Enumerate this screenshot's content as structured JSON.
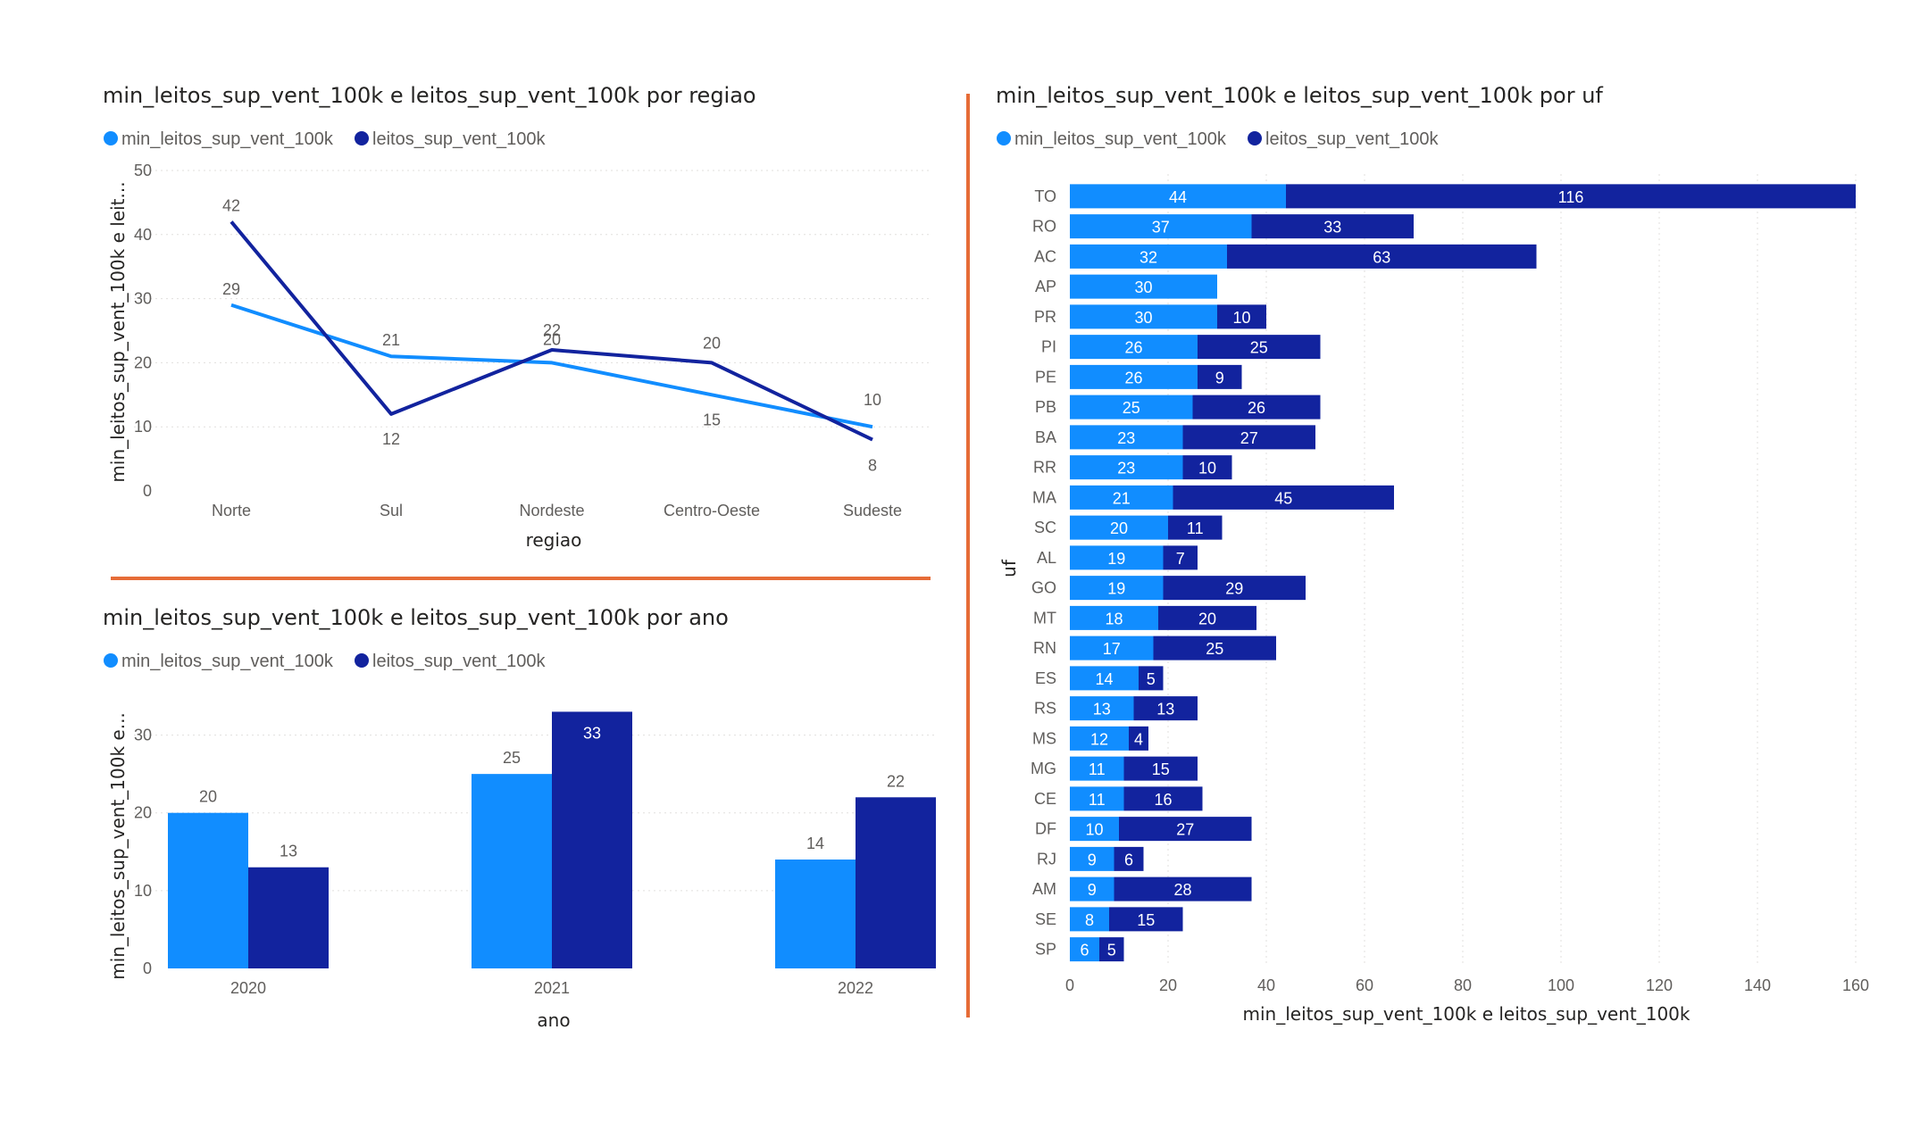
{
  "colors": {
    "light": "#118dff",
    "dark": "#12239e",
    "divider": "#e66c37"
  },
  "chart_data": [
    {
      "type": "line",
      "title": "min_leitos_sup_vent_100k e leitos_sup_vent_100k por regiao",
      "xlabel": "regiao",
      "ylabel": "min_leitos_sup_vent_100k e leit...",
      "ylim": [
        0,
        50
      ],
      "yticks": [
        "0",
        "10",
        "20",
        "30",
        "40",
        "50"
      ],
      "grid": true,
      "legend": "top-left",
      "categories": [
        "Norte",
        "Sul",
        "Nordeste",
        "Centro-Oeste",
        "Sudeste"
      ],
      "series": [
        {
          "name": "min_leitos_sup_vent_100k",
          "values": [
            29,
            21,
            20,
            15,
            10
          ],
          "labels": [
            "29",
            "21",
            "20",
            "15",
            "10"
          ]
        },
        {
          "name": "leitos_sup_vent_100k",
          "values": [
            42,
            12,
            22,
            20,
            8
          ],
          "labels": [
            "42",
            "12",
            "22",
            "20",
            "8"
          ]
        }
      ]
    },
    {
      "type": "bar",
      "title": "min_leitos_sup_vent_100k e leitos_sup_vent_100k por ano",
      "xlabel": "ano",
      "ylabel": "min_leitos_sup_vent_100k e...",
      "ylim": [
        0,
        35
      ],
      "yticks": [
        "0",
        "10",
        "20",
        "30"
      ],
      "grid": true,
      "legend": "top-left",
      "categories": [
        "2020",
        "2021",
        "2022"
      ],
      "series": [
        {
          "name": "min_leitos_sup_vent_100k",
          "values": [
            20,
            25,
            14
          ],
          "labels": [
            "20",
            "25",
            "14"
          ]
        },
        {
          "name": "leitos_sup_vent_100k",
          "values": [
            13,
            33,
            22
          ],
          "labels": [
            "13",
            "33",
            "22"
          ]
        }
      ]
    },
    {
      "type": "bar",
      "orientation": "horizontal",
      "stacked": true,
      "title": "min_leitos_sup_vent_100k e leitos_sup_vent_100k por uf",
      "xlabel": "min_leitos_sup_vent_100k e leitos_sup_vent_100k",
      "ylabel": "uf",
      "xlim": [
        0,
        160
      ],
      "xticks": [
        "0",
        "20",
        "40",
        "60",
        "80",
        "100",
        "120",
        "140",
        "160"
      ],
      "grid": true,
      "legend": "top-left",
      "categories": [
        "TO",
        "RO",
        "AC",
        "AP",
        "PR",
        "PI",
        "PE",
        "PB",
        "BA",
        "RR",
        "MA",
        "SC",
        "AL",
        "GO",
        "MT",
        "RN",
        "ES",
        "RS",
        "MS",
        "MG",
        "CE",
        "DF",
        "RJ",
        "AM",
        "SE",
        "SP"
      ],
      "series": [
        {
          "name": "min_leitos_sup_vent_100k",
          "values": [
            44,
            37,
            32,
            30,
            30,
            26,
            26,
            25,
            23,
            23,
            21,
            20,
            19,
            19,
            18,
            17,
            14,
            13,
            12,
            11,
            11,
            10,
            9,
            9,
            8,
            6
          ],
          "labels": [
            "44",
            "37",
            "32",
            "30",
            "30",
            "26",
            "26",
            "25",
            "23",
            "23",
            "21",
            "20",
            "19",
            "19",
            "18",
            "17",
            "14",
            "13",
            "12",
            "11",
            "11",
            "10",
            "9",
            "9",
            "8",
            "6"
          ]
        },
        {
          "name": "leitos_sup_vent_100k",
          "values": [
            116,
            33,
            63,
            0,
            10,
            25,
            9,
            26,
            27,
            10,
            45,
            11,
            7,
            29,
            20,
            25,
            5,
            13,
            4,
            15,
            16,
            27,
            6,
            28,
            15,
            5
          ],
          "labels": [
            "116",
            "33",
            "63",
            "",
            "10",
            "25",
            "9",
            "26",
            "27",
            "10",
            "45",
            "11",
            "7",
            "29",
            "20",
            "25",
            "5",
            "13",
            "4",
            "15",
            "16",
            "27",
            "6",
            "28",
            "15",
            "5"
          ]
        }
      ]
    }
  ]
}
